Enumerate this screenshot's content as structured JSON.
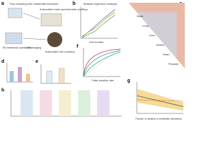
{
  "panels": {
    "a": {
      "label": "a",
      "texts": [
        "Flow sampling and metabolite extraction",
        "Automated mass spectrometer profiling",
        "96 metabolic substrates",
        "Cell imaging",
        "Automated cell counting"
      ]
    },
    "b": {
      "label": "b",
      "title": "Multiple regression analysis",
      "x_label": "Cell number"
    },
    "c": {
      "label": "c",
      "organs": [
        "Brain",
        "Lung",
        "Liver",
        "Kidney",
        "Heart",
        "Prostate"
      ]
    },
    "d": {
      "label": "d"
    },
    "e": {
      "label": "e"
    },
    "f": {
      "label": "f",
      "x_label": "False positive rate"
    },
    "g": {
      "label": "g",
      "x_label": "Fraction of variation in metabolite abundance"
    },
    "h": {
      "label": "h"
    }
  }
}
